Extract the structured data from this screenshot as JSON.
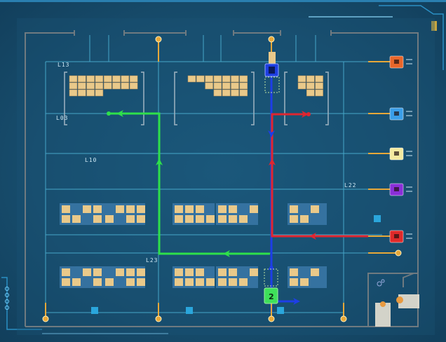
{
  "lane_labels": {
    "l13": "L13",
    "l03": "L03",
    "l10": "L10",
    "l22": "L22",
    "l23": "L23"
  },
  "agv_green": {
    "number": "2",
    "color": "#3ee05a"
  },
  "agv_blue": {
    "color": "#1e3ee0"
  },
  "stations": [
    {
      "color": "#e8662a"
    },
    {
      "color": "#3a9ee8"
    },
    {
      "color": "#f4eaa0"
    },
    {
      "color": "#8a2fd8"
    },
    {
      "color": "#e02a2a"
    }
  ],
  "paths": {
    "green": "#2ee04a",
    "red": "#e02630",
    "blue": "#1e3ee8"
  },
  "colors": {
    "grid": "#4fb6d8",
    "wall": "#6f7a80",
    "pin": "#e8a838",
    "box": "#e9c98a",
    "rack": "#3b78a8",
    "marker": "#2aa6dc"
  }
}
